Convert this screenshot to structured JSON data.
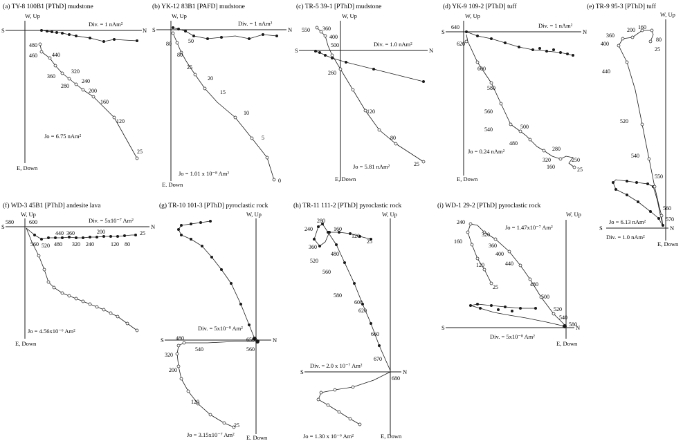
{
  "panels": [
    {
      "title": "(a) TY-8 100B1 [PThD] mudstone",
      "up": "W, Up",
      "down": "E, Down",
      "west": "S",
      "east": "N",
      "div": "Div. = 1 nAm²",
      "jo": "Jo = 6.75 nAm²",
      "steps": [
        "480",
        "460",
        "440",
        "360",
        "320",
        "280",
        "240",
        "200",
        "160",
        "120",
        "25"
      ]
    },
    {
      "title": "(b) YK-12 83B1 [PAFD] mudstone",
      "up": "W, Up",
      "down": "E. Down",
      "west": "S",
      "east": "N",
      "div": "Div. = 1 nAm²",
      "jo": "Jo = 1.01 x 10⁻⁸ Am²",
      "steps": [
        "80",
        "50",
        "80",
        "25",
        "20",
        "15",
        "10",
        "5",
        "0"
      ]
    },
    {
      "title": "(c) TR-5 39-1 [PThD] mudstone",
      "up": "W, Up",
      "down": "E, Down",
      "west": "S",
      "east": "N",
      "div": "Div. = 1.0 nAm²",
      "jo": "Jo = 5.81 nAm²",
      "steps": [
        "550",
        "360",
        "400",
        "500",
        "260",
        "120",
        "80",
        "25"
      ]
    },
    {
      "title": "(d) YK-9 109-2 [PThD] tuff",
      "up": "W, Up",
      "down": "E, Down",
      "west": "S",
      "east": "N",
      "div": "Div. = 1 nAm²",
      "jo": "Jo = 0.24 nAm²",
      "steps": [
        "640",
        "620",
        "600",
        "580",
        "560",
        "540",
        "500",
        "480",
        "280",
        "320",
        "160",
        "250",
        "25"
      ]
    },
    {
      "title": "(e) TR-9 95-3 [PThD] tuff",
      "up": "W, Up",
      "down": "E, Down",
      "west": "S",
      "east": "N",
      "div": "Div. = 1.0 nAm²",
      "jo": "Jo = 6.13 nAm²",
      "steps": [
        "360",
        "400",
        "200",
        "160",
        "80",
        "25",
        "440",
        "520",
        "540",
        "550",
        "560",
        "570"
      ]
    },
    {
      "title": "(f) WD-3 45B1 [PThD] andesite lava",
      "up": "W, Up",
      "down": "E, Down",
      "west": "S",
      "east": "N",
      "div": "Div. = 5x10⁻⁷ Am²",
      "jo": "Jo = 4.56x10⁻⁶ Am²",
      "steps": [
        "580",
        "600",
        "440",
        "360",
        "200",
        "25",
        "560",
        "520",
        "480",
        "320",
        "240",
        "120",
        "80"
      ]
    },
    {
      "title": "(g) TR-10 101-3 [PThD] pyroclastic rock",
      "up": "W, Up",
      "down": "E. Down",
      "west": "S",
      "east": "N",
      "div": "Div. = 5x10⁻⁸ Am²",
      "jo": "Jo = 3.15x10⁻⁷ Am²",
      "steps": [
        "480",
        "540",
        "650",
        "560",
        "320",
        "200",
        "120",
        "25"
      ]
    },
    {
      "title": "(h) TR-11 111-2 [PThD] pyroclastic rock",
      "up": "W, Up",
      "down": "E, Down",
      "west": "S",
      "east": "N",
      "div": "Div. = 2.0 x 10⁻⁷ Am²",
      "jo": "Jo = 1.30 x 10⁻⁶ Am²",
      "steps": [
        "280",
        "240",
        "160",
        "120",
        "25",
        "360",
        "520",
        "480",
        "560",
        "580",
        "600",
        "620",
        "660",
        "670",
        "680"
      ]
    },
    {
      "title": "(i) WD-1 29-2 [PThD] pyroclastic rock",
      "up": "W, Up",
      "down": "E, Down",
      "west": "S",
      "east": "N",
      "div": "Div. = 5x10⁻⁸ Am²",
      "jo": "Jo = 1.47x10⁻⁷ Am²",
      "steps": [
        "240",
        "160",
        "120",
        "25",
        "320",
        "360",
        "400",
        "440",
        "480",
        "500",
        "520",
        "540",
        "580"
      ]
    }
  ]
}
